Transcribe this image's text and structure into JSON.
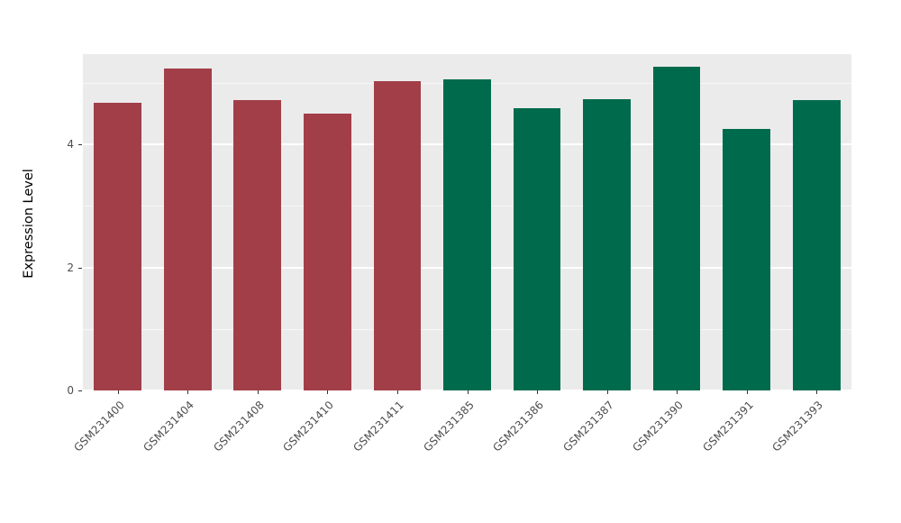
{
  "chart_data": {
    "type": "bar",
    "title": "",
    "xlabel": "",
    "ylabel": "Expression Level",
    "categories": [
      "GSM231400",
      "GSM231404",
      "GSM231408",
      "GSM231410",
      "GSM231411",
      "GSM231385",
      "GSM231386",
      "GSM231387",
      "GSM231390",
      "GSM231391",
      "GSM231393"
    ],
    "values": [
      4.68,
      5.23,
      4.72,
      4.5,
      5.03,
      5.06,
      4.59,
      4.73,
      5.26,
      4.25,
      4.72
    ],
    "bar_colors": [
      "#A23E48",
      "#A23E48",
      "#A23E48",
      "#A23E48",
      "#A23E48",
      "#006B4C",
      "#006B4C",
      "#006B4C",
      "#006B4C",
      "#006B4C",
      "#006B4C"
    ],
    "groups": [
      {
        "name": "maroon-group",
        "color": "#A23E48",
        "categories": [
          "GSM231400",
          "GSM231404",
          "GSM231408",
          "GSM231410",
          "GSM231411"
        ]
      },
      {
        "name": "green-group",
        "color": "#006B4C",
        "categories": [
          "GSM231385",
          "GSM231386",
          "GSM231387",
          "GSM231390",
          "GSM231391",
          "GSM231393"
        ]
      }
    ],
    "ylim": [
      0,
      5.47
    ],
    "yticks": [
      0,
      2,
      4
    ],
    "ytick_labels": [
      "0",
      "2",
      "4"
    ],
    "yticks_minor": [
      1,
      3,
      5
    ],
    "grid": true,
    "legend_position": "none",
    "panel_bg": "#EBEBEB",
    "axis_text_color": "#4D4D4D"
  }
}
